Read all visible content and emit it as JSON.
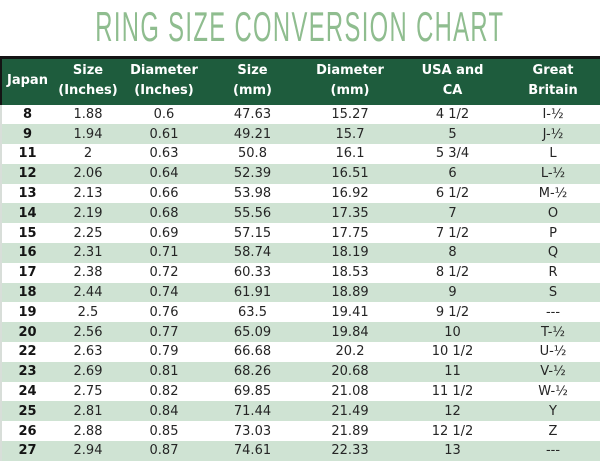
{
  "title": "RING SIZE CONVERSION CHART",
  "colors": {
    "title_green": "#8FBD8F",
    "header_bg": "#1E5C3D",
    "header_text": "#FFFFFF",
    "row_alt_bg": "#CFE3D3",
    "row_bg": "#FFFFFF",
    "body_text": "#252525",
    "top_border": "#141414"
  },
  "header": {
    "columns": [
      {
        "key": "japan",
        "line1": "Japan",
        "line2": ""
      },
      {
        "key": "size-inches",
        "line1": "Size",
        "line2": "(Inches)"
      },
      {
        "key": "diameter-inches",
        "line1": "Diameter",
        "line2": "(Inches)"
      },
      {
        "key": "size-mm",
        "line1": "Size",
        "line2": "(mm)"
      },
      {
        "key": "diameter-mm",
        "line1": "Diameter",
        "line2": "(mm)"
      },
      {
        "key": "usa-ca",
        "line1": "USA and",
        "line2": "CA"
      },
      {
        "key": "great-britain",
        "line1": "Great",
        "line2": "Britain"
      }
    ]
  },
  "chart_data": {
    "type": "table",
    "title": "RING SIZE CONVERSION CHART",
    "columns": [
      "Japan",
      "Size (Inches)",
      "Diameter (Inches)",
      "Size (mm)",
      "Diameter (mm)",
      "USA and CA",
      "Great Britain"
    ],
    "rows": [
      [
        "8",
        "1.88",
        "0.6",
        "47.63",
        "15.27",
        "4 1/2",
        "I-½"
      ],
      [
        "9",
        "1.94",
        "0.61",
        "49.21",
        "15.7",
        "5",
        "J-½"
      ],
      [
        "11",
        "2",
        "0.63",
        "50.8",
        "16.1",
        "5 3/4",
        "L"
      ],
      [
        "12",
        "2.06",
        "0.64",
        "52.39",
        "16.51",
        "6",
        "L-½"
      ],
      [
        "13",
        "2.13",
        "0.66",
        "53.98",
        "16.92",
        "6 1/2",
        "M-½"
      ],
      [
        "14",
        "2.19",
        "0.68",
        "55.56",
        "17.35",
        "7",
        "O"
      ],
      [
        "15",
        "2.25",
        "0.69",
        "57.15",
        "17.75",
        "7 1/2",
        "P"
      ],
      [
        "16",
        "2.31",
        "0.71",
        "58.74",
        "18.19",
        "8",
        "Q"
      ],
      [
        "17",
        "2.38",
        "0.72",
        "60.33",
        "18.53",
        "8 1/2",
        "R"
      ],
      [
        "18",
        "2.44",
        "0.74",
        "61.91",
        "18.89",
        "9",
        "S"
      ],
      [
        "19",
        "2.5",
        "0.76",
        "63.5",
        "19.41",
        "9 1/2",
        "---"
      ],
      [
        "20",
        "2.56",
        "0.77",
        "65.09",
        "19.84",
        "10",
        "T-½"
      ],
      [
        "22",
        "2.63",
        "0.79",
        "66.68",
        "20.2",
        "10 1/2",
        "U-½"
      ],
      [
        "23",
        "2.69",
        "0.81",
        "68.26",
        "20.68",
        "11",
        "V-½"
      ],
      [
        "24",
        "2.75",
        "0.82",
        "69.85",
        "21.08",
        "11 1/2",
        "W-½"
      ],
      [
        "25",
        "2.81",
        "0.84",
        "71.44",
        "21.49",
        "12",
        "Y"
      ],
      [
        "26",
        "2.88",
        "0.85",
        "73.03",
        "21.89",
        "12 1/2",
        "Z"
      ],
      [
        "27",
        "2.94",
        "0.87",
        "74.61",
        "22.33",
        "13",
        "---"
      ]
    ]
  }
}
